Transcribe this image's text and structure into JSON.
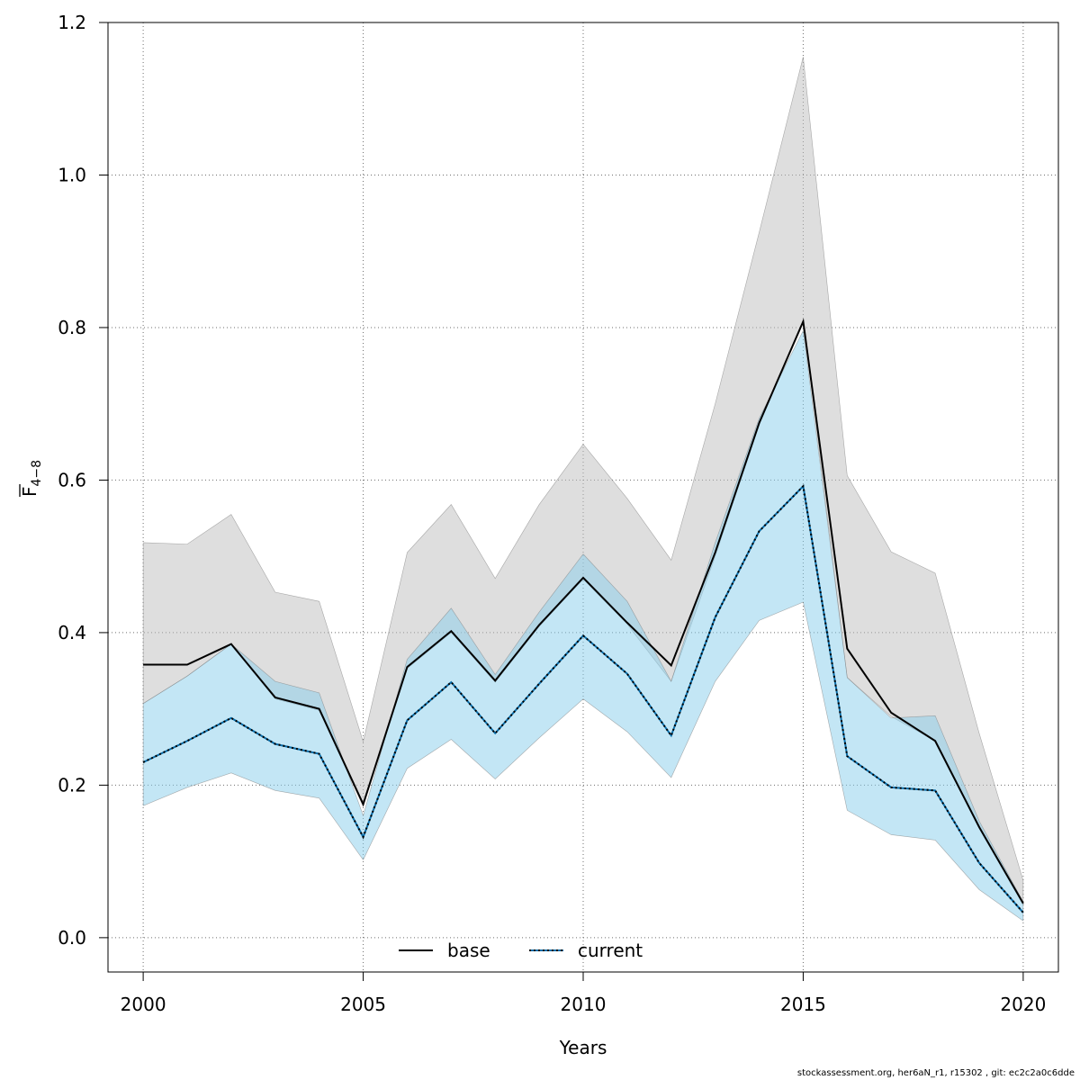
{
  "chart_data": {
    "type": "line",
    "xlabel": "Years",
    "ylabel_main": "F",
    "ylabel_sub": "4−8",
    "xlim": [
      1999.2,
      2020.8
    ],
    "ylim": [
      -0.045,
      1.2
    ],
    "x_ticks": [
      "2000",
      "2005",
      "2010",
      "2015",
      "2020"
    ],
    "y_ticks": [
      "0.0",
      "0.2",
      "0.4",
      "0.6",
      "0.8",
      "1.0",
      "1.2"
    ],
    "grid": true,
    "legend_position": "bottom-center",
    "x": [
      2000,
      2001,
      2002,
      2003,
      2004,
      2005,
      2006,
      2007,
      2008,
      2009,
      2010,
      2011,
      2012,
      2013,
      2014,
      2015,
      2016,
      2017,
      2018,
      2019,
      2020
    ],
    "series": [
      {
        "name": "base",
        "line_color": "#000000",
        "line_style": "solid",
        "band_color": "#bebebe",
        "values": [
          0.358,
          0.358,
          0.385,
          0.315,
          0.3,
          0.175,
          0.355,
          0.402,
          0.337,
          0.41,
          0.472,
          0.413,
          0.357,
          0.505,
          0.675,
          0.808,
          0.379,
          0.295,
          0.258,
          0.145,
          0.045
        ],
        "lower": [
          0.307,
          0.343,
          0.385,
          0.313,
          0.298,
          0.172,
          0.353,
          0.4,
          0.335,
          0.408,
          0.47,
          0.411,
          0.336,
          0.5,
          0.672,
          0.808,
          0.341,
          0.29,
          0.258,
          0.143,
          0.043
        ],
        "upper": [
          0.518,
          0.516,
          0.555,
          0.453,
          0.441,
          0.257,
          0.505,
          0.568,
          0.471,
          0.568,
          0.647,
          0.576,
          0.495,
          0.7,
          0.925,
          1.155,
          0.606,
          0.506,
          0.478,
          0.268,
          0.075
        ]
      },
      {
        "name": "current",
        "line_color": "#000000",
        "line_style": "dotted",
        "band_color": "#87ceeb",
        "values": [
          0.23,
          0.258,
          0.288,
          0.254,
          0.241,
          0.132,
          0.285,
          0.335,
          0.268,
          0.333,
          0.396,
          0.346,
          0.265,
          0.42,
          0.533,
          0.592,
          0.238,
          0.197,
          0.193,
          0.098,
          0.033
        ],
        "lower": [
          0.173,
          0.197,
          0.216,
          0.193,
          0.183,
          0.102,
          0.222,
          0.26,
          0.208,
          0.262,
          0.313,
          0.27,
          0.21,
          0.336,
          0.416,
          0.44,
          0.167,
          0.135,
          0.128,
          0.063,
          0.022
        ],
        "upper": [
          0.307,
          0.343,
          0.385,
          0.336,
          0.321,
          0.16,
          0.365,
          0.432,
          0.345,
          0.427,
          0.503,
          0.441,
          0.336,
          0.518,
          0.681,
          0.796,
          0.341,
          0.288,
          0.291,
          0.153,
          0.047
        ]
      }
    ]
  },
  "footer": "stockassessment.org, her6aN_r1, r15302 , git: ec2c2a0c6dde"
}
